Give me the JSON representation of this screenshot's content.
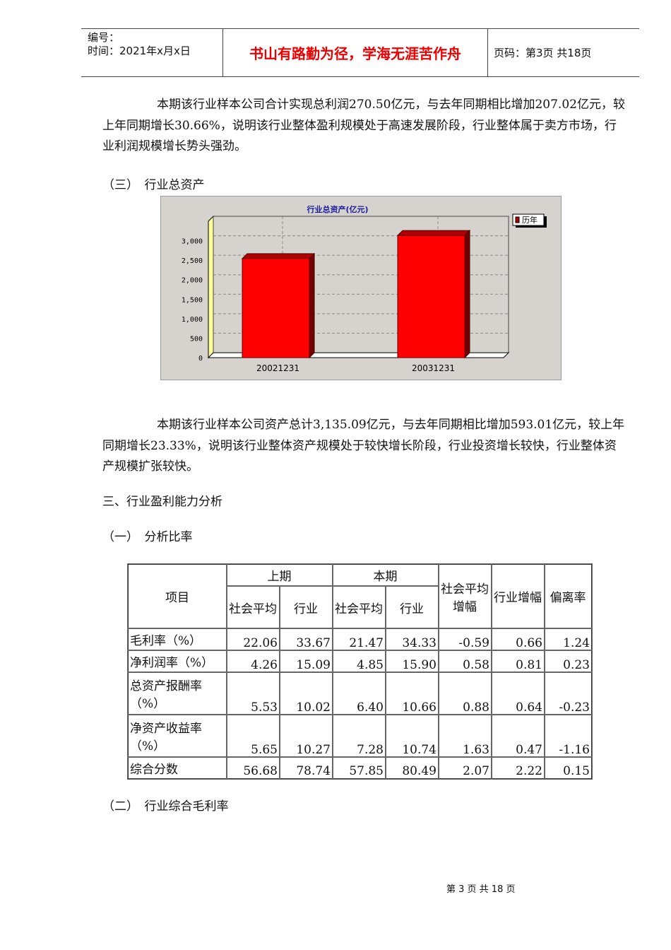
{
  "header": {
    "number_label": "编号：",
    "time_label": "时间：2021年x月x日",
    "motto": "书山有路勤为径，学海无涯苦作舟",
    "page_label": "页码：第3页 共18页"
  },
  "para1": "本期该行业样本公司合计实现总利润270.50亿元，与去年同期相比增加207.02亿元，较上年同期增长30.66%，说明该行业整体盈利规模处于高速发展阶段，行业整体属于卖方市场，行业利润规模增长势头强劲。",
  "heading1": "（三）　行业总资产",
  "chart_data": {
    "type": "bar",
    "title": "行业总资产(亿元)",
    "categories": [
      "20021231",
      "20031231"
    ],
    "series": [
      {
        "name": "历年",
        "values": [
          2542.08,
          3135.09
        ]
      }
    ],
    "ylim": [
      0,
      3500
    ],
    "yticks": [
      "0",
      "500",
      "1,000",
      "1,500",
      "2,000",
      "2,500",
      "3,000"
    ],
    "grid": true,
    "legend": "top-right",
    "colors": {
      "bar": "#ff0000",
      "background": "#d6d3ce",
      "title": "#1a1aa0"
    }
  },
  "para2": "本期该行业样本公司资产总计3,135.09亿元，与去年同期相比增加593.01亿元，较上年同期增长23.33%，说明该行业整体资产规模处于较快增长阶段，行业投资增长较快，行业整体资产规模扩张较快。",
  "heading2": "三、行业盈利能力分析",
  "heading3": "（一）　分析比率",
  "table": {
    "h_item": "项目",
    "h_prev": "上期",
    "h_cur": "本期",
    "h_soc": "社会平均",
    "h_ind": "行业",
    "h_socg": "社会平均增幅",
    "h_indg": "行业增幅",
    "h_dev": "偏离率",
    "rows": [
      [
        "毛利率（%）",
        "22.06",
        "33.67",
        "21.47",
        "34.33",
        "-0.59",
        "0.66",
        "1.24"
      ],
      [
        "净利润率（%）",
        "4.26",
        "15.09",
        "4.85",
        "15.90",
        "0.58",
        "0.81",
        "0.23"
      ],
      [
        "总资产报酬率（%）",
        "5.53",
        "10.02",
        "6.40",
        "10.66",
        "0.88",
        "0.64",
        "-0.23"
      ],
      [
        "净资产收益率（%）",
        "5.65",
        "10.27",
        "7.28",
        "10.74",
        "1.63",
        "0.47",
        "-1.16"
      ],
      [
        "综合分数",
        "56.68",
        "78.74",
        "57.85",
        "80.49",
        "2.07",
        "2.22",
        "0.15"
      ]
    ]
  },
  "heading4": "（二）　行业综合毛利率",
  "footer": "第 3 页 共 18 页"
}
